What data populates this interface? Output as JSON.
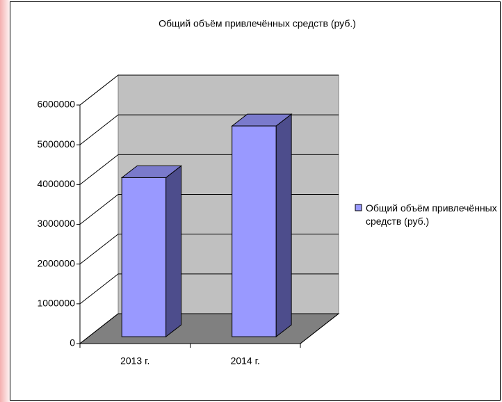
{
  "chart_data": {
    "type": "bar",
    "title": "Общий объём привлечённых средств (руб.)",
    "categories": [
      "2013 г.",
      "2014 г."
    ],
    "series": [
      {
        "name": "Общий объём привлечённых средств (руб.)",
        "color": "#9999ff",
        "values": [
          4000000,
          5300000
        ]
      }
    ],
    "ylim": [
      0,
      6000000
    ],
    "yticks": [
      0,
      1000000,
      2000000,
      3000000,
      4000000,
      5000000,
      6000000
    ],
    "grid": true,
    "legend": "right"
  }
}
